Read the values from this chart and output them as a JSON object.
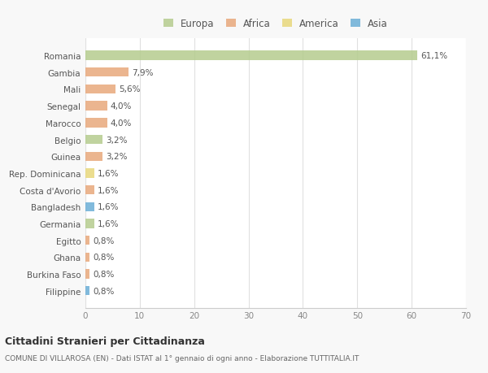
{
  "countries": [
    "Romania",
    "Gambia",
    "Mali",
    "Senegal",
    "Marocco",
    "Belgio",
    "Guinea",
    "Rep. Dominicana",
    "Costa d'Avorio",
    "Bangladesh",
    "Germania",
    "Egitto",
    "Ghana",
    "Burkina Faso",
    "Filippine"
  ],
  "values": [
    61.1,
    7.9,
    5.6,
    4.0,
    4.0,
    3.2,
    3.2,
    1.6,
    1.6,
    1.6,
    1.6,
    0.8,
    0.8,
    0.8,
    0.8
  ],
  "labels": [
    "61,1%",
    "7,9%",
    "5,6%",
    "4,0%",
    "4,0%",
    "3,2%",
    "3,2%",
    "1,6%",
    "1,6%",
    "1,6%",
    "1,6%",
    "0,8%",
    "0,8%",
    "0,8%",
    "0,8%"
  ],
  "colors": [
    "#b5cc8e",
    "#e8a87c",
    "#e8a87c",
    "#e8a87c",
    "#e8a87c",
    "#b5cc8e",
    "#e8a87c",
    "#e8d87c",
    "#e8a87c",
    "#6baed6",
    "#b5cc8e",
    "#e8a87c",
    "#e8a87c",
    "#e8a87c",
    "#6baed6"
  ],
  "legend_labels": [
    "Europa",
    "Africa",
    "America",
    "Asia"
  ],
  "legend_colors": [
    "#b5cc8e",
    "#e8a87c",
    "#e8d87c",
    "#6baed6"
  ],
  "title": "Cittadini Stranieri per Cittadinanza",
  "subtitle": "COMUNE DI VILLAROSA (EN) - Dati ISTAT al 1° gennaio di ogni anno - Elaborazione TUTTITALIA.IT",
  "xlim": [
    0,
    70
  ],
  "xticks": [
    0,
    10,
    20,
    30,
    40,
    50,
    60,
    70
  ],
  "background_color": "#f8f8f8",
  "plot_background": "#ffffff",
  "grid_color": "#e0e0e0",
  "bar_height": 0.55
}
